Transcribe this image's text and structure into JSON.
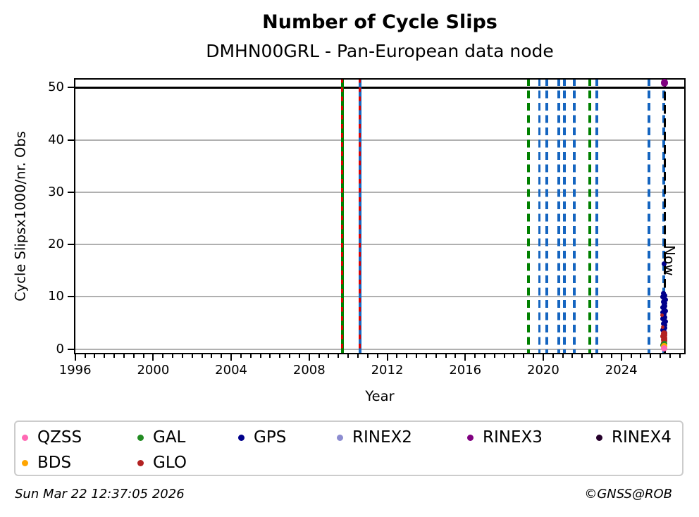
{
  "title": "Number of Cycle Slips",
  "subtitle": "DMHN00GRL - Pan-European data node",
  "footer": {
    "timestamp": "Sun Mar 22 12:37:05 2026",
    "credit": "©GNSS@ROB"
  },
  "legend": {
    "items": [
      {
        "label": "QZSS",
        "color": "#FF69B4"
      },
      {
        "label": "GAL",
        "color": "#228B22"
      },
      {
        "label": "GPS",
        "color": "#00008B"
      },
      {
        "label": "RINEX2",
        "color": "#8C8CD0"
      },
      {
        "label": "RINEX3",
        "color": "#800080"
      },
      {
        "label": "RINEX4",
        "color": "#26002B"
      },
      {
        "label": "BDS",
        "color": "#FFA500"
      },
      {
        "label": "GLO",
        "color": "#B22222"
      }
    ]
  },
  "chart_data": {
    "type": "scatter",
    "title": "Number of Cycle Slips",
    "subtitle": "DMHN00GRL - Pan-European data node",
    "xlabel": "Year",
    "ylabel": "Cycle Slipsx1000/nr. Obs",
    "xlim": [
      1995.94,
      2027.3
    ],
    "ylim": [
      -1,
      51.8
    ],
    "xticks": [
      1996,
      2000,
      2004,
      2008,
      2012,
      2016,
      2020,
      2024
    ],
    "yticks": [
      0,
      10,
      20,
      30,
      40,
      50
    ],
    "minor_xtick_step": 0.5,
    "grid": "horizontal",
    "grid_color": "#b0b0b0",
    "cap_line_y": 50,
    "now": {
      "label": "Now",
      "x": 2026.23
    },
    "event_lines": [
      {
        "x": 2009.69,
        "color": "#008000",
        "style": "solid",
        "overlay": "#DD0000"
      },
      {
        "x": 2010.6,
        "color": "#1565C0",
        "style": "solid",
        "overlay": "#DD0000"
      },
      {
        "x": 2019.24,
        "color": "#008000",
        "style": "dashed"
      },
      {
        "x": 2019.8,
        "color": "#1565C0",
        "style": "dashed"
      },
      {
        "x": 2020.18,
        "color": "#1565C0",
        "style": "dashed"
      },
      {
        "x": 2020.79,
        "color": "#1565C0",
        "style": "dashed"
      },
      {
        "x": 2021.08,
        "color": "#1565C0",
        "style": "dashed"
      },
      {
        "x": 2021.59,
        "color": "#1565C0",
        "style": "dashed"
      },
      {
        "x": 2022.38,
        "color": "#008000",
        "style": "dashed"
      },
      {
        "x": 2022.74,
        "color": "#1565C0",
        "style": "dashed"
      },
      {
        "x": 2025.42,
        "color": "#1565C0",
        "style": "dashed"
      },
      {
        "x": 2026.18,
        "color": "#1565C0",
        "style": "dashed"
      },
      {
        "x": 2026.23,
        "color": "#000000",
        "style": "dashed",
        "role": "now"
      }
    ],
    "series": [
      {
        "name": "RINEX3",
        "color": "#800080",
        "dot": 10.5,
        "points": [
          [
            2026.21,
            50.9,
            10.5
          ]
        ]
      },
      {
        "name": "RINEX2",
        "color": "#8C8CD0",
        "dot": 7,
        "points": []
      },
      {
        "name": "RINEX4",
        "color": "#26002B",
        "dot": 7,
        "points": []
      },
      {
        "name": "GPS",
        "color": "#00008B",
        "dot": 7,
        "points": [
          [
            2026.2,
            16.3
          ],
          [
            2026.17,
            10.7
          ],
          [
            2026.23,
            10.3
          ],
          [
            2026.13,
            10.0
          ],
          [
            2026.2,
            9.7
          ],
          [
            2026.27,
            9.4
          ],
          [
            2026.15,
            9.1
          ],
          [
            2026.22,
            8.8
          ],
          [
            2026.18,
            8.5
          ],
          [
            2026.25,
            8.2
          ],
          [
            2026.12,
            7.9
          ],
          [
            2026.19,
            7.6
          ],
          [
            2026.26,
            7.3
          ],
          [
            2026.14,
            7.0
          ],
          [
            2026.21,
            6.7
          ],
          [
            2026.17,
            6.4
          ],
          [
            2026.24,
            6.1
          ],
          [
            2026.13,
            5.8
          ],
          [
            2026.2,
            5.5
          ],
          [
            2026.28,
            5.2
          ],
          [
            2026.16,
            4.9
          ],
          [
            2026.22,
            4.6
          ],
          [
            2026.18,
            4.3
          ],
          [
            2026.25,
            4.0
          ],
          [
            2026.14,
            3.7
          ],
          [
            2026.2,
            3.4
          ],
          [
            2026.23,
            3.1
          ]
        ]
      },
      {
        "name": "GLO",
        "color": "#B22222",
        "dot": 8,
        "points": [
          [
            2026.1,
            6.5,
            5
          ],
          [
            2026.12,
            4.2,
            5
          ],
          [
            2026.19,
            3.0,
            9
          ],
          [
            2026.23,
            2.7,
            8
          ],
          [
            2026.16,
            2.4,
            9
          ],
          [
            2026.21,
            2.1,
            8
          ],
          [
            2026.18,
            1.8,
            9
          ],
          [
            2026.22,
            1.5,
            8
          ],
          [
            2026.17,
            1.2,
            8
          ]
        ]
      },
      {
        "name": "GAL",
        "color": "#228B22",
        "dot": 8,
        "points": [
          [
            2026.2,
            1.0
          ],
          [
            2026.16,
            0.8
          ]
        ]
      },
      {
        "name": "BDS",
        "color": "#FFA500",
        "dot": 8.5,
        "points": [
          [
            2026.19,
            0.55
          ]
        ]
      },
      {
        "name": "QZSS",
        "color": "#FF69B4",
        "dot": 9.5,
        "points": [
          [
            2026.19,
            0.12
          ]
        ]
      }
    ]
  }
}
